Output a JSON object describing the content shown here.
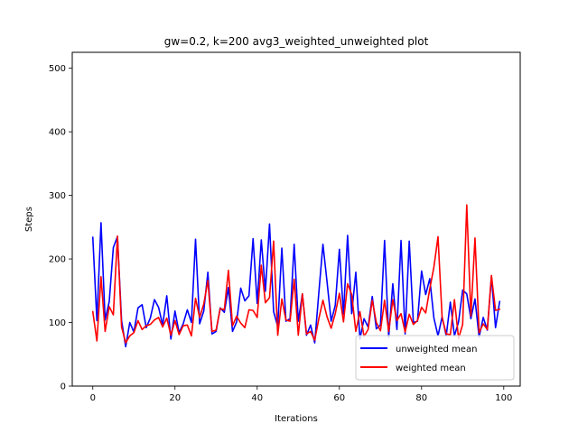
{
  "chart_data": {
    "type": "line",
    "title": "gw=0.2, k=200 avg3_weighted_unweighted plot",
    "xlabel": "Iterations",
    "ylabel": "Steps",
    "xlim": [
      -5,
      104
    ],
    "ylim": [
      0,
      525
    ],
    "xticks": [
      0,
      20,
      40,
      60,
      80,
      100
    ],
    "yticks": [
      0,
      100,
      200,
      300,
      400,
      500
    ],
    "xtick_labels": [
      "0",
      "20",
      "40",
      "60",
      "80",
      "100"
    ],
    "ytick_labels": [
      "0",
      "100",
      "200",
      "300",
      "400",
      "500"
    ],
    "grid": false,
    "legend": "lower-right",
    "x": [
      0,
      1,
      2,
      3,
      4,
      5,
      6,
      7,
      8,
      9,
      10,
      11,
      12,
      13,
      14,
      15,
      16,
      17,
      18,
      19,
      20,
      21,
      22,
      23,
      24,
      25,
      26,
      27,
      28,
      29,
      30,
      31,
      32,
      33,
      34,
      35,
      36,
      37,
      38,
      39,
      40,
      41,
      42,
      43,
      44,
      45,
      46,
      47,
      48,
      49,
      50,
      51,
      52,
      53,
      54,
      55,
      56,
      57,
      58,
      59,
      60,
      61,
      62,
      63,
      64,
      65,
      66,
      67,
      68,
      69,
      70,
      71,
      72,
      73,
      74,
      75,
      76,
      77,
      78,
      79,
      80,
      81,
      82,
      83,
      84,
      85,
      86,
      87,
      88,
      89,
      90,
      91,
      92,
      93,
      94,
      95,
      96,
      97,
      98,
      99
    ],
    "series": [
      {
        "name": "unweighted mean",
        "color": "#0000ff",
        "values": [
          234,
          103,
          257,
          104,
          133,
          218,
          235,
          103,
          62,
          100,
          85,
          123,
          128,
          92,
          107,
          136,
          124,
          96,
          142,
          74,
          118,
          84,
          98,
          120,
          100,
          231,
          98,
          118,
          179,
          82,
          86,
          123,
          116,
          155,
          86,
          101,
          154,
          134,
          142,
          232,
          130,
          230,
          149,
          255,
          117,
          94,
          217,
          102,
          106,
          223,
          102,
          145,
          80,
          96,
          68,
          147,
          223,
          164,
          102,
          127,
          215,
          113,
          237,
          114,
          179,
          74,
          106,
          93,
          141,
          90,
          96,
          229,
          77,
          161,
          89,
          229,
          82,
          228,
          100,
          102,
          181,
          144,
          169,
          107,
          79,
          109,
          79,
          132,
          79,
          101,
          151,
          145,
          106,
          137,
          77,
          108,
          88,
          172,
          92,
          133
        ]
      },
      {
        "name": "weighted mean",
        "color": "#ff0000",
        "values": [
          117,
          71,
          172,
          86,
          125,
          112,
          236,
          93,
          68,
          79,
          84,
          103,
          89,
          95,
          97,
          104,
          108,
          93,
          107,
          80,
          103,
          81,
          95,
          96,
          79,
          138,
          108,
          129,
          166,
          86,
          88,
          122,
          120,
          182,
          95,
          110,
          99,
          92,
          120,
          119,
          108,
          190,
          131,
          139,
          228,
          80,
          137,
          104,
          102,
          168,
          80,
          145,
          82,
          86,
          72,
          106,
          135,
          109,
          91,
          114,
          146,
          101,
          161,
          144,
          86,
          117,
          78,
          89,
          135,
          100,
          87,
          135,
          86,
          136,
          103,
          114,
          85,
          113,
          97,
          103,
          124,
          115,
          153,
          187,
          235,
          108,
          82,
          81,
          136,
          75,
          97,
          285,
          110,
          233,
          84,
          98,
          89,
          174,
          119,
          121
        ]
      }
    ]
  }
}
